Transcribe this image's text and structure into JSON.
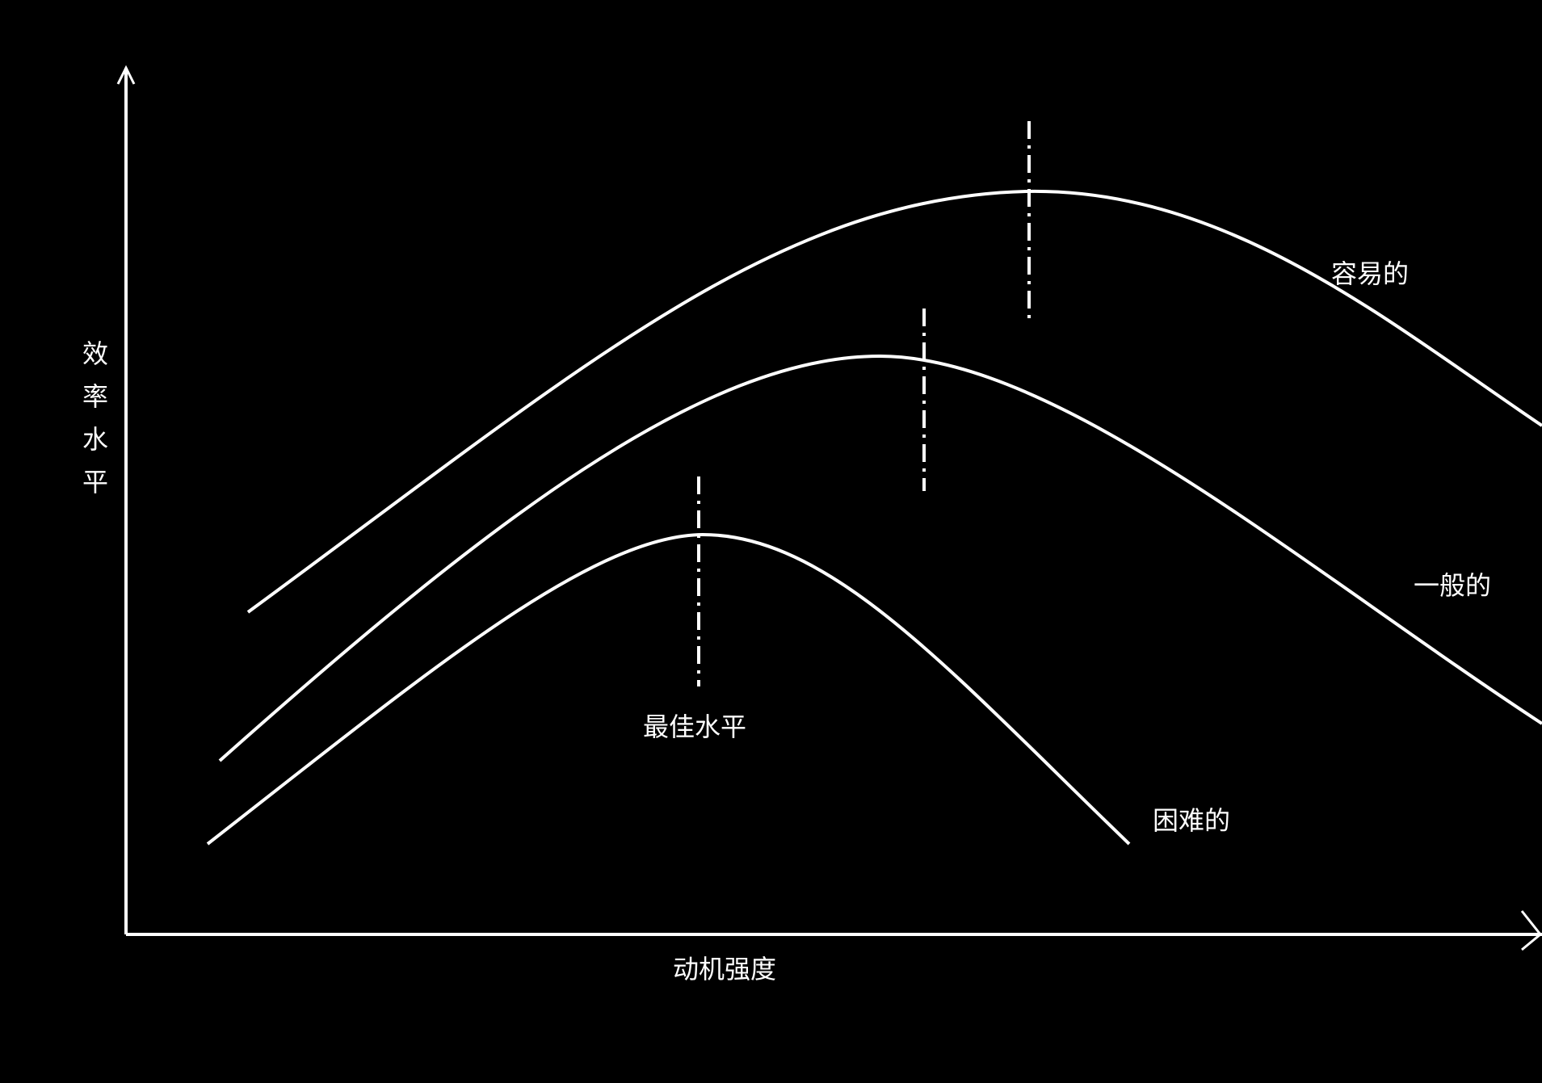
{
  "diagram": {
    "y_axis_label": "效率水平",
    "x_axis_label": "动机强度",
    "optimal_label": "最佳水平",
    "curves": [
      {
        "id": "easy",
        "label": "容易的"
      },
      {
        "id": "medium",
        "label": "一般的"
      },
      {
        "id": "hard",
        "label": "困难的"
      }
    ]
  },
  "colors": {
    "background": "#000000",
    "foreground": "#ffffff"
  }
}
